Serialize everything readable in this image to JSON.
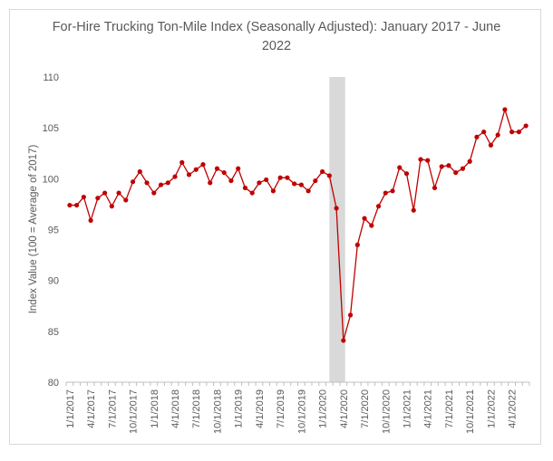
{
  "chart_data": {
    "type": "line",
    "title": "For-Hire Trucking Ton-Mile Index (Seasonally Adjusted): January 2017 - June 2022",
    "xlabel": "",
    "ylabel": "Index Value (100 = Average of 2017)",
    "ylim": [
      80,
      110
    ],
    "yticks": [
      "80",
      "85",
      "90",
      "95",
      "100",
      "105",
      "110"
    ],
    "grid": false,
    "legend": "none",
    "x_tick_labels": [
      "1/1/2017",
      "4/1/2017",
      "7/1/2017",
      "10/1/2017",
      "1/1/2018",
      "4/1/2018",
      "7/1/2018",
      "10/1/2018",
      "1/1/2019",
      "4/1/2019",
      "7/1/2019",
      "10/1/2019",
      "1/1/2020",
      "4/1/2020",
      "7/1/2020",
      "10/1/2020",
      "1/1/2021",
      "4/1/2021",
      "7/1/2021",
      "10/1/2021",
      "1/1/2022",
      "4/1/2022"
    ],
    "shaded_region": {
      "from": "2/1/2020",
      "to": "4/1/2020",
      "color": "#d9d9d9"
    },
    "line_color": "#c00000",
    "x": [
      "2017-01",
      "2017-02",
      "2017-03",
      "2017-04",
      "2017-05",
      "2017-06",
      "2017-07",
      "2017-08",
      "2017-09",
      "2017-10",
      "2017-11",
      "2017-12",
      "2018-01",
      "2018-02",
      "2018-03",
      "2018-04",
      "2018-05",
      "2018-06",
      "2018-07",
      "2018-08",
      "2018-09",
      "2018-10",
      "2018-11",
      "2018-12",
      "2019-01",
      "2019-02",
      "2019-03",
      "2019-04",
      "2019-05",
      "2019-06",
      "2019-07",
      "2019-08",
      "2019-09",
      "2019-10",
      "2019-11",
      "2019-12",
      "2020-01",
      "2020-02",
      "2020-03",
      "2020-04",
      "2020-05",
      "2020-06",
      "2020-07",
      "2020-08",
      "2020-09",
      "2020-10",
      "2020-11",
      "2020-12",
      "2021-01",
      "2021-02",
      "2021-03",
      "2021-04",
      "2021-05",
      "2021-06",
      "2021-07",
      "2021-08",
      "2021-09",
      "2021-10",
      "2021-11",
      "2021-12",
      "2022-01",
      "2022-02",
      "2022-03",
      "2022-04",
      "2022-05",
      "2022-06"
    ],
    "values": [
      97.4,
      97.4,
      98.2,
      95.9,
      98.1,
      98.6,
      97.3,
      98.6,
      97.9,
      99.7,
      100.7,
      99.6,
      98.6,
      99.4,
      99.6,
      100.2,
      101.6,
      100.4,
      100.9,
      101.4,
      99.6,
      101.0,
      100.6,
      99.8,
      101.0,
      99.1,
      98.6,
      99.6,
      99.9,
      98.8,
      100.1,
      100.1,
      99.5,
      99.4,
      98.8,
      99.8,
      100.7,
      100.3,
      97.1,
      84.1,
      86.6,
      93.5,
      96.1,
      95.4,
      97.3,
      98.6,
      98.8,
      101.1,
      100.5,
      96.9,
      101.9,
      101.8,
      99.1,
      101.2,
      101.3,
      100.6,
      101.0,
      101.7,
      104.1,
      104.6,
      103.3,
      104.3,
      106.8,
      104.6,
      104.6,
      105.2
    ]
  }
}
